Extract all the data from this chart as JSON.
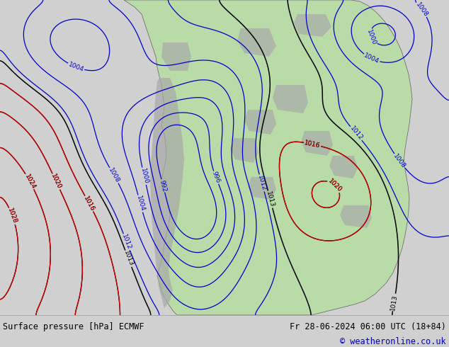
{
  "title_left": "Surface pressure [hPa] ECMWF",
  "title_right": "Fr 28-06-2024 06:00 UTC (18+84)",
  "copyright": "© weatheronline.co.uk",
  "bg_color": "#d0d0d0",
  "land_color": "#b8dba8",
  "highland_color": "#a8a8a8",
  "isobar_blue": "#0000cc",
  "isobar_black": "#000000",
  "isobar_red": "#cc0000",
  "footer_bg": "#d8d8d8",
  "footer_text": "#000000",
  "footer_fontsize": 8.5,
  "label_fontsize": 6.5,
  "fig_width": 6.34,
  "fig_height": 4.9,
  "dpi": 100
}
